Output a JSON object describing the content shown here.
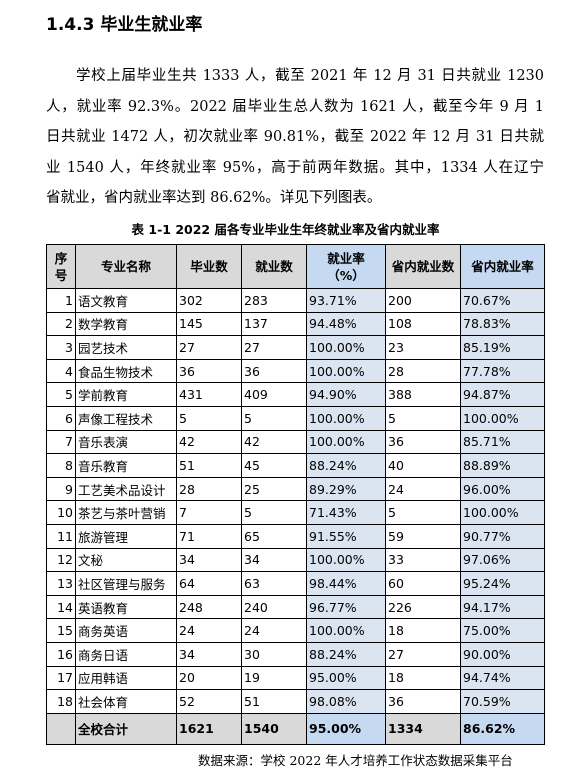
{
  "heading": "1.4.3 毕业生就业率",
  "paragraph": [
    "学校上届毕业生共 1333 人，截至 2021 年 12 月 31 日共就业 1230",
    "人，就业率 92.3%。2022 届毕业生总人数为 1621 人，截至今年 9 月 1",
    "日共就业 1472 人，初次就业率 90.81%，截至 2022 年 12 月 31 日共就",
    "业 1540 人，年终就业率 95%，高于前两年数据。其中，1334 人在辽宁",
    "省就业，省内就业率达到 86.62%。详见下列图表。"
  ],
  "table": {
    "caption": "表 1-1 2022 届各专业毕业生年终就业率及省内就业率",
    "columns": [
      "序号",
      "专业名称",
      "毕业数",
      "就业数",
      "就业率\n（%）",
      "省内就业数",
      "省内就业率"
    ],
    "rows": [
      [
        "1",
        "语文教育",
        "302",
        "283",
        "93.71%",
        "200",
        "70.67%"
      ],
      [
        "2",
        "数学教育",
        "145",
        "137",
        "94.48%",
        "108",
        "78.83%"
      ],
      [
        "3",
        "园艺技术",
        "27",
        "27",
        "100.00%",
        "23",
        "85.19%"
      ],
      [
        "4",
        "食品生物技术",
        "36",
        "36",
        "100.00%",
        "28",
        "77.78%"
      ],
      [
        "5",
        "学前教育",
        "431",
        "409",
        "94.90%",
        "388",
        "94.87%"
      ],
      [
        "6",
        "声像工程技术",
        "5",
        "5",
        "100.00%",
        "5",
        "100.00%"
      ],
      [
        "7",
        "音乐表演",
        "42",
        "42",
        "100.00%",
        "36",
        "85.71%"
      ],
      [
        "8",
        "音乐教育",
        "51",
        "45",
        "88.24%",
        "40",
        "88.89%"
      ],
      [
        "9",
        "工艺美术品设计",
        "28",
        "25",
        "89.29%",
        "24",
        "96.00%"
      ],
      [
        "10",
        "茶艺与茶叶营销",
        "7",
        "5",
        "71.43%",
        "5",
        "100.00%"
      ],
      [
        "11",
        "旅游管理",
        "71",
        "65",
        "91.55%",
        "59",
        "90.77%"
      ],
      [
        "12",
        "文秘",
        "34",
        "34",
        "100.00%",
        "33",
        "97.06%"
      ],
      [
        "13",
        "社区管理与服务",
        "64",
        "63",
        "98.44%",
        "60",
        "95.24%"
      ],
      [
        "14",
        "英语教育",
        "248",
        "240",
        "96.77%",
        "226",
        "94.17%"
      ],
      [
        "15",
        "商务英语",
        "24",
        "24",
        "100.00%",
        "18",
        "75.00%"
      ],
      [
        "16",
        "商务日语",
        "34",
        "30",
        "88.24%",
        "27",
        "90.00%"
      ],
      [
        "17",
        "应用韩语",
        "20",
        "19",
        "95.00%",
        "18",
        "94.74%"
      ],
      [
        "18",
        "社会体育",
        "52",
        "51",
        "98.08%",
        "36",
        "70.59%"
      ]
    ],
    "total": [
      "全校合计",
      "1621",
      "1540",
      "95.00%",
      "1334",
      "86.62%"
    ]
  },
  "source": "数据来源：学校 2022 年人才培养工作状态数据采集平台"
}
